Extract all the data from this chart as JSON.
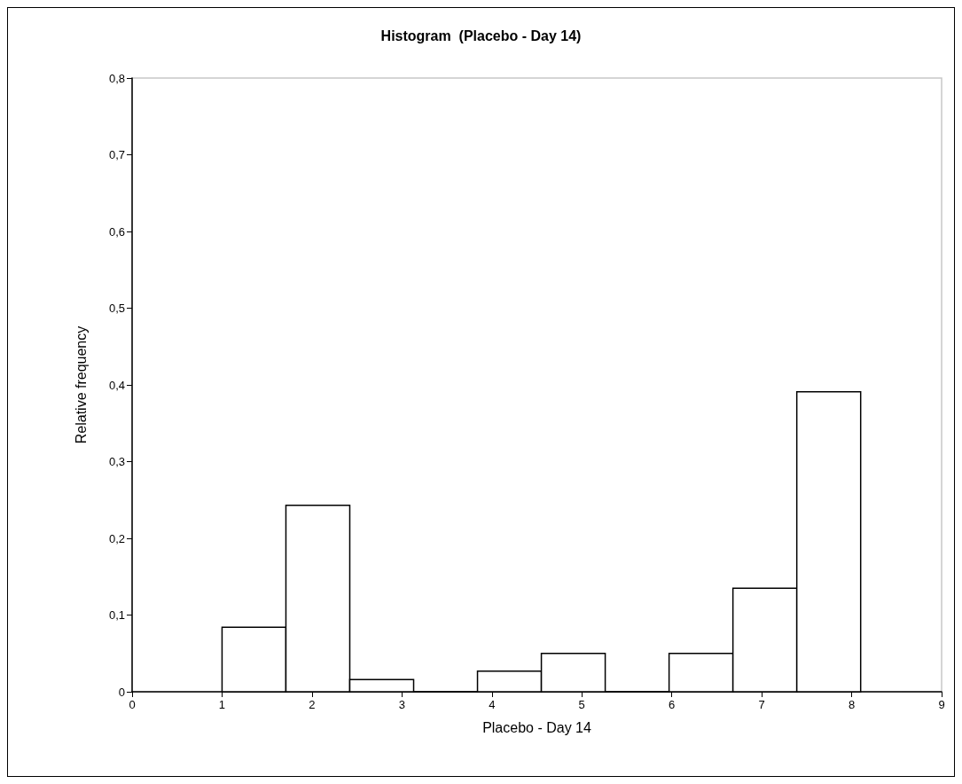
{
  "chart_data": {
    "type": "histogram",
    "title": "Histogram  (Placebo - Day 14)",
    "xlabel": "Placebo - Day 14",
    "ylabel": "Relative frequency",
    "bins": [
      1,
      1.71,
      2.42,
      3.13,
      3.84,
      4.55,
      5.26,
      5.97,
      6.68,
      7.39,
      8.1
    ],
    "values": [
      0.084,
      0.243,
      0.016,
      0,
      0.027,
      0.05,
      0,
      0.05,
      0.135,
      0.391
    ],
    "color": "#ffffff",
    "xlim": [
      0,
      9
    ],
    "xticks": [
      0,
      1,
      2,
      3,
      4,
      5,
      6,
      7,
      8,
      9
    ],
    "ylim": [
      0,
      0.8
    ],
    "yticks": [
      0,
      {
        "value": 0.1,
        "label": "0,1"
      },
      {
        "value": 0.2,
        "label": "0,2"
      },
      {
        "value": 0.3,
        "label": "0,3"
      },
      {
        "value": 0.4,
        "label": "0,4"
      },
      {
        "value": 0.5,
        "label": "0,5"
      },
      {
        "value": 0.6,
        "label": "0,6"
      },
      {
        "value": 0.7,
        "label": "0,7"
      },
      {
        "value": 0.8,
        "label": "0,8"
      }
    ],
    "grid": false
  }
}
